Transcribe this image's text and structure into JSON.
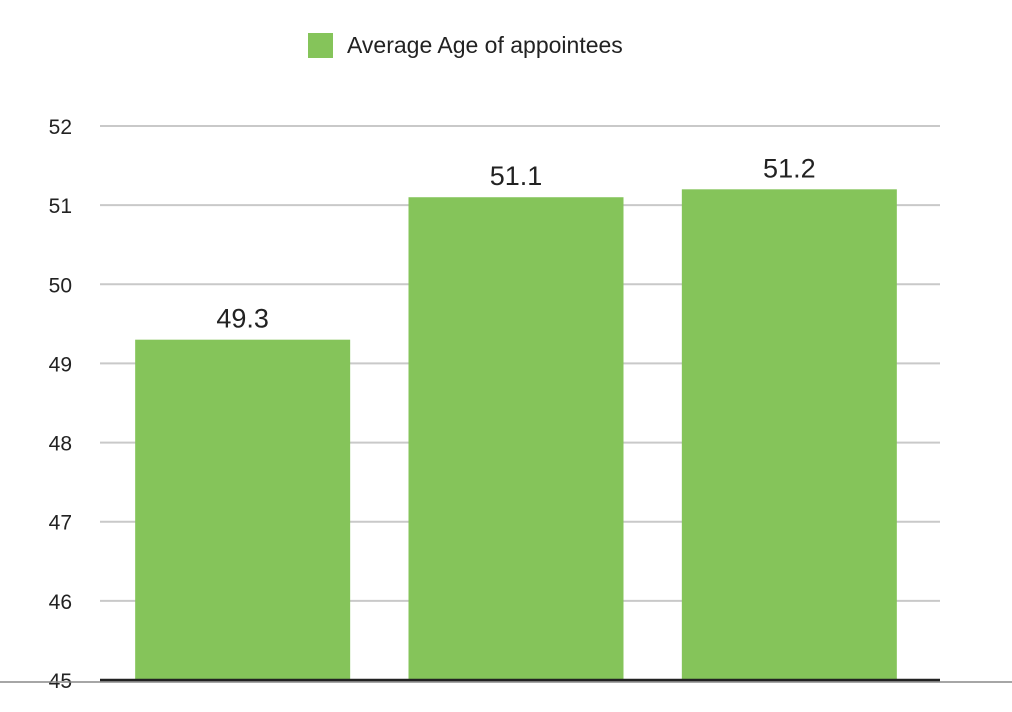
{
  "chart_data": {
    "type": "bar",
    "categories": [
      "",
      "",
      ""
    ],
    "series": [
      {
        "name": "Average Age of appointees",
        "values": [
          49.3,
          51.1,
          51.2
        ],
        "color": "#85c45a"
      }
    ],
    "data_labels": [
      "49.3",
      "51.1",
      "51.2"
    ],
    "y_ticks": [
      "45",
      "46",
      "47",
      "48",
      "49",
      "50",
      "51",
      "52"
    ],
    "ylim": [
      45,
      52
    ],
    "title": "",
    "xlabel": "",
    "ylabel": "",
    "grid": true,
    "legend_position": "top-center"
  },
  "colors": {
    "bar": "#85c45a",
    "grid": "#c9c9c9",
    "axis": "#222222",
    "text": "#222222"
  }
}
